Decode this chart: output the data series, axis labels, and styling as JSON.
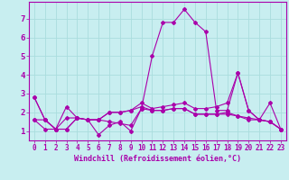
{
  "xlabel": "Windchill (Refroidissement éolien,°C)",
  "xlim": [
    -0.5,
    23.5
  ],
  "ylim": [
    0.5,
    7.9
  ],
  "yticks": [
    1,
    2,
    3,
    4,
    5,
    6,
    7
  ],
  "xticks": [
    0,
    1,
    2,
    3,
    4,
    5,
    6,
    7,
    8,
    9,
    10,
    11,
    12,
    13,
    14,
    15,
    16,
    17,
    18,
    19,
    20,
    21,
    22,
    23
  ],
  "bg_color": "#c8eef0",
  "line_color": "#aa00aa",
  "grid_color": "#aadddd",
  "lines": [
    {
      "x": [
        0,
        1,
        2,
        3,
        4,
        5,
        6,
        7,
        8,
        9,
        10,
        11,
        12,
        13,
        14,
        15,
        16,
        17,
        18,
        19,
        20,
        21,
        22,
        23
      ],
      "y": [
        2.8,
        1.6,
        1.1,
        2.3,
        1.7,
        1.6,
        0.8,
        1.3,
        1.5,
        1.0,
        2.2,
        5.0,
        6.8,
        6.8,
        7.5,
        6.8,
        6.3,
        2.1,
        2.1,
        4.1,
        2.1,
        1.6,
        2.5,
        1.1
      ]
    },
    {
      "x": [
        0,
        1,
        2,
        3,
        4,
        5,
        6,
        7,
        8,
        9,
        10,
        11,
        12,
        13,
        14,
        15,
        16,
        17,
        18,
        19,
        20,
        21,
        22,
        23
      ],
      "y": [
        1.6,
        1.6,
        1.1,
        1.1,
        1.7,
        1.6,
        1.6,
        2.0,
        2.0,
        2.1,
        2.3,
        2.1,
        2.1,
        2.2,
        2.2,
        1.9,
        1.9,
        1.9,
        1.9,
        1.8,
        1.7,
        1.6,
        1.5,
        1.1
      ]
    },
    {
      "x": [
        0,
        1,
        2,
        3,
        4,
        5,
        6,
        7,
        8,
        9,
        10,
        11,
        12,
        13,
        14,
        15,
        16,
        17,
        18,
        19,
        20,
        21,
        22,
        23
      ],
      "y": [
        1.6,
        1.1,
        1.1,
        1.1,
        1.7,
        1.6,
        1.6,
        1.5,
        1.4,
        1.3,
        2.2,
        2.1,
        2.1,
        2.2,
        2.2,
        1.9,
        1.9,
        1.9,
        2.0,
        1.8,
        1.6,
        1.6,
        1.5,
        1.1
      ]
    },
    {
      "x": [
        0,
        1,
        2,
        3,
        4,
        5,
        6,
        7,
        8,
        9,
        10,
        11,
        12,
        13,
        14,
        15,
        16,
        17,
        18,
        19,
        20,
        21,
        22,
        23
      ],
      "y": [
        2.8,
        1.6,
        1.1,
        1.7,
        1.7,
        1.6,
        1.6,
        2.0,
        2.0,
        2.1,
        2.5,
        2.2,
        2.3,
        2.4,
        2.5,
        2.2,
        2.2,
        2.3,
        2.5,
        4.1,
        2.1,
        1.6,
        1.5,
        1.1
      ]
    }
  ]
}
